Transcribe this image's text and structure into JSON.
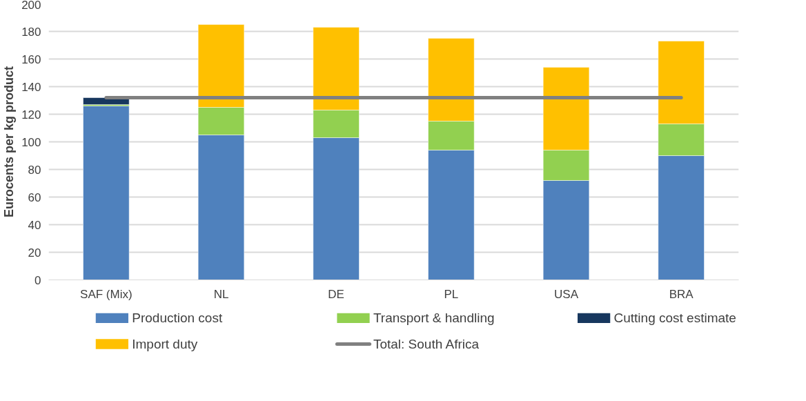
{
  "chart_data": {
    "type": "bar",
    "stacked": true,
    "ylabel": "Eurocents per kg product",
    "categories": [
      "SAF (Mix)",
      "NL",
      "DE",
      "PL",
      "USA",
      "BRA"
    ],
    "series": [
      {
        "name": "Production cost",
        "color": "#4f81bd",
        "values": [
          126,
          105,
          103,
          94,
          72,
          90
        ]
      },
      {
        "name": "Transport & handling",
        "color": "#92d050",
        "values": [
          1,
          20,
          20,
          21,
          22,
          23
        ]
      },
      {
        "name": "Cutting cost estimate",
        "color": "#17375e",
        "values": [
          5,
          null,
          null,
          null,
          null,
          null
        ]
      },
      {
        "name": "Import duty",
        "color": "#ffc000",
        "values": [
          null,
          60,
          60,
          60,
          60,
          60
        ]
      },
      {
        "name": "Total: South Africa",
        "type": "line",
        "color": "#808080",
        "values": [
          132,
          132,
          132,
          132,
          132,
          132
        ]
      }
    ],
    "ylim": [
      0,
      200
    ],
    "yticks": [
      0,
      20,
      40,
      60,
      80,
      100,
      120,
      140,
      160,
      180,
      200
    ],
    "grid": "y",
    "legend": "bottom"
  }
}
